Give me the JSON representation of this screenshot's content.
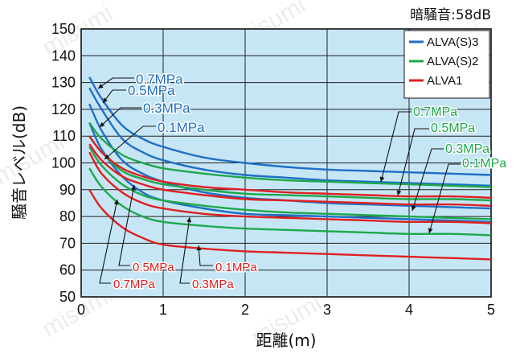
{
  "chart_data": {
    "type": "line",
    "title": "暗騒音:58dB",
    "xlabel": "距離(m)",
    "ylabel": "騒音レベル(dB)",
    "xlim": [
      0,
      5
    ],
    "ylim": [
      50,
      150
    ],
    "xticks": [
      0,
      1,
      2,
      3,
      4,
      5
    ],
    "yticks": [
      50,
      60,
      70,
      80,
      90,
      100,
      110,
      120,
      130,
      140,
      150
    ],
    "grid": true,
    "legend_position": "top-right",
    "x": [
      0.1,
      0.25,
      0.5,
      0.75,
      1,
      1.5,
      2,
      2.5,
      3,
      3.5,
      4,
      4.5,
      5
    ],
    "series": [
      {
        "name": "ALVA(S)3",
        "label": "0.7MPa",
        "color": "#1f6fc6",
        "values": [
          132,
          124,
          114,
          109,
          106,
          102,
          100,
          98.5,
          97.5,
          97,
          96.5,
          96,
          95.5
        ]
      },
      {
        "name": "ALVA(S)3",
        "label": "0.5MPa",
        "color": "#1f6fc6",
        "values": [
          128,
          120,
          109,
          104,
          101,
          97.5,
          95.5,
          94.5,
          93.5,
          93,
          92.5,
          92,
          91.5
        ]
      },
      {
        "name": "ALVA(S)3",
        "label": "0.3MPa",
        "color": "#1f6fc6",
        "values": [
          122,
          112,
          101,
          96,
          93,
          89,
          87,
          86,
          85,
          84.5,
          84,
          83.5,
          83
        ]
      },
      {
        "name": "ALVA(S)3",
        "label": "0.1MPa",
        "color": "#1f6fc6",
        "values": [
          115,
          105,
          95,
          89,
          86,
          83,
          81,
          80.5,
          80,
          79.5,
          79,
          78.5,
          78
        ]
      },
      {
        "name": "ALVA(S)2",
        "label": "0.7MPa",
        "color": "#1ea84a",
        "values": [
          115,
          109,
          103,
          100,
          98,
          96,
          94.5,
          93.5,
          93,
          92.5,
          92,
          91.5,
          91
        ]
      },
      {
        "name": "ALVA(S)2",
        "label": "0.5MPa",
        "color": "#1ea84a",
        "values": [
          110,
          104,
          97,
          94,
          92,
          90,
          88.5,
          88,
          87.5,
          87,
          86.5,
          86.5,
          86
        ]
      },
      {
        "name": "ALVA(S)2",
        "label": "0.3MPa",
        "color": "#1ea84a",
        "values": [
          106,
          99,
          92,
          88,
          86,
          84,
          82.5,
          81.5,
          81,
          80.5,
          80,
          79.5,
          79
        ]
      },
      {
        "name": "ALVA(S)2",
        "label": "0.1MPa",
        "color": "#1ea84a",
        "values": [
          98,
          91,
          84,
          80,
          78,
          76.5,
          75.5,
          75,
          74.5,
          74,
          73.5,
          73.5,
          73
        ]
      },
      {
        "name": "ALVA1",
        "label": "0.7MPa",
        "color": "#e02020",
        "values": [
          110,
          104,
          98,
          95,
          93,
          91,
          90,
          89,
          88.5,
          88,
          87.5,
          87.5,
          87
        ]
      },
      {
        "name": "ALVA1",
        "label": "0.5MPa",
        "color": "#e02020",
        "values": [
          107,
          101,
          95,
          92,
          90,
          88,
          86.5,
          86,
          85.5,
          85,
          84.5,
          84.5,
          84
        ]
      },
      {
        "name": "ALVA1",
        "label": "0.3MPa",
        "color": "#e02020",
        "values": [
          104,
          96,
          89,
          85,
          83,
          81,
          80,
          79.5,
          79,
          78.5,
          78,
          78,
          77.5
        ]
      },
      {
        "name": "ALVA1",
        "label": "0.1MPa",
        "color": "#e02020",
        "values": [
          90,
          83,
          76,
          72,
          69.5,
          68,
          67,
          66.5,
          66,
          65.5,
          65,
          64.5,
          64
        ]
      }
    ],
    "legend": [
      {
        "name": "ALVA(S)3",
        "color": "#1f6fc6"
      },
      {
        "name": "ALVA(S)2",
        "color": "#1ea84a"
      },
      {
        "name": "ALVA1",
        "color": "#e02020"
      }
    ]
  }
}
